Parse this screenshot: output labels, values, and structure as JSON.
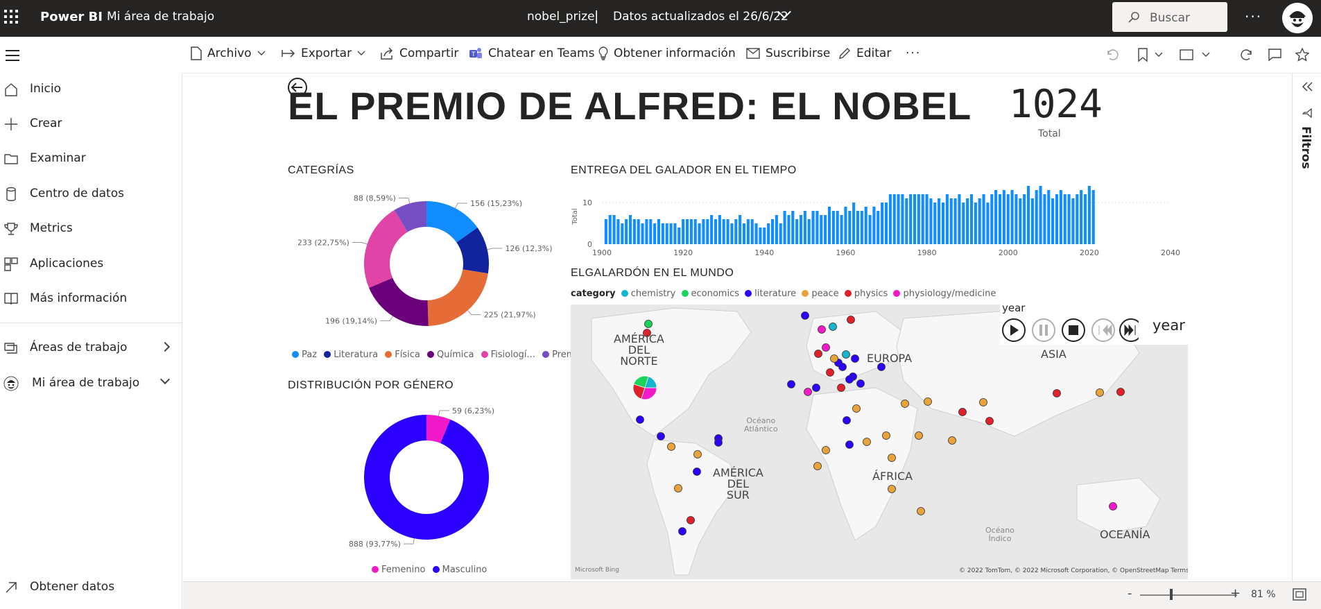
{
  "app": {
    "brand": "Power BI",
    "workspace": "Mi área de trabajo",
    "document": "nobel_prize",
    "separator": "|",
    "updated": "Datos actualizados el 26/6/22",
    "search_placeholder": "Buscar",
    "more": "···"
  },
  "toolbar": {
    "archivo": "Archivo",
    "exportar": "Exportar",
    "compartir": "Compartir",
    "teams": "Chatear en Teams",
    "insights": "Obtener información",
    "suscribirse": "Suscribirse",
    "editar": "Editar",
    "more": "···"
  },
  "sidebar": {
    "items": [
      {
        "label": "Inicio",
        "icon": "home-icon"
      },
      {
        "label": "Crear",
        "icon": "plus-icon"
      },
      {
        "label": "Examinar",
        "icon": "folder-icon"
      },
      {
        "label": "Centro de datos",
        "icon": "database-icon"
      },
      {
        "label": "Metrics",
        "icon": "trophy-icon"
      },
      {
        "label": "Aplicaciones",
        "icon": "apps-icon"
      },
      {
        "label": "Más información",
        "icon": "book-icon"
      }
    ],
    "areas": "Áreas de trabajo",
    "myarea": "Mi área de trabajo",
    "getdata": "Obtener datos"
  },
  "right_pane": {
    "filters": "Filtros"
  },
  "report": {
    "title": "EL PREMIO DE ALFRED: EL NOBEL",
    "kpi_value": "1024",
    "kpi_label": "Total"
  },
  "categories_chart": {
    "title": "CATEGRÍAS",
    "slices": [
      {
        "name": "Paz",
        "value": 156,
        "label": "156 (15,23%)",
        "color": "#118DFF"
      },
      {
        "name": "Literatura",
        "value": 126,
        "label": "126 (12,3%)",
        "color": "#12239E"
      },
      {
        "name": "Física",
        "value": 225,
        "label": "225 (21,97%)",
        "color": "#E66C37"
      },
      {
        "name": "Química",
        "value": 196,
        "label": "196 (19,14%)",
        "color": "#6B007B"
      },
      {
        "name": "Fisiologí...",
        "value": 233,
        "label": "233 (22,75%)",
        "color": "#E044A7"
      },
      {
        "name": "Premio ...",
        "value": 88,
        "label": "88 (8,59%)",
        "color": "#744EC2"
      }
    ]
  },
  "gender_chart": {
    "title": "DISTRIBUCIÓN POR GÉNERO",
    "slices": [
      {
        "name": "Femenino",
        "value": 59,
        "label": "59 (6,23%)",
        "color": "#F21AC8"
      },
      {
        "name": "Masculino",
        "value": 888,
        "label": "888 (93,77%)",
        "color": "#2B00FF"
      }
    ]
  },
  "time_chart": {
    "title": "ENTREGA DEL GALADOR EN EL TIEMPO",
    "ylabel": "Total",
    "xticks": [
      "1900",
      "1920",
      "1940",
      "1960",
      "1980",
      "2000",
      "2020",
      "2040"
    ],
    "yticks": [
      "0",
      "10"
    ]
  },
  "map_chart": {
    "title": "ELGALARDÓN EN EL MUNDO",
    "legend_title": "category",
    "legend": [
      {
        "name": "chemistry",
        "color": "#12B5CB"
      },
      {
        "name": "economics",
        "color": "#1AD35A"
      },
      {
        "name": "literature",
        "color": "#2B00FF"
      },
      {
        "name": "peace",
        "color": "#E8A33C"
      },
      {
        "name": "physics",
        "color": "#E0202A"
      },
      {
        "name": "physiology/medicine",
        "color": "#F21AC8"
      }
    ],
    "regions": {
      "na1": "AMÉRICA",
      "na2": "DEL",
      "na3": "NORTE",
      "sa1": "AMÉRICA",
      "sa2": "DEL",
      "sa3": "SUR",
      "eu": "EUROPA",
      "af": "ÁFRICA",
      "as": "ASIA",
      "oc": "OCEANÍA",
      "oa1": "Océano",
      "oa2": "Atlántico",
      "oi1": "Océano",
      "oi2": "Índico"
    },
    "attribution": "© 2022 TomTom, © 2022 Microsoft Corporation, © OpenStreetMap  Terms",
    "bing": "Microsoft Bing",
    "player_title": "year",
    "player_label": "year"
  },
  "chart_data": [
    {
      "type": "pie",
      "title": "CATEGRÍAS",
      "categories": [
        "Paz",
        "Literatura",
        "Física",
        "Química",
        "Fisiologí...",
        "Premio ..."
      ],
      "values": [
        156,
        126,
        225,
        196,
        233,
        88
      ]
    },
    {
      "type": "pie",
      "title": "DISTRIBUCIÓN POR GÉNERO",
      "categories": [
        "Femenino",
        "Masculino"
      ],
      "values": [
        59,
        888
      ]
    },
    {
      "type": "bar",
      "title": "ENTREGA DEL GALADOR EN EL TIEMPO",
      "ylabel": "Total",
      "xlim": [
        1900,
        2040
      ],
      "ylim": [
        0,
        15
      ],
      "x": [
        1901,
        1902,
        1903,
        1904,
        1905,
        1906,
        1907,
        1908,
        1909,
        1910,
        1911,
        1912,
        1913,
        1914,
        1915,
        1916,
        1917,
        1918,
        1919,
        1920,
        1921,
        1922,
        1923,
        1924,
        1925,
        1926,
        1927,
        1928,
        1929,
        1930,
        1931,
        1932,
        1933,
        1934,
        1935,
        1936,
        1937,
        1938,
        1939,
        1940,
        1941,
        1942,
        1943,
        1944,
        1945,
        1946,
        1947,
        1948,
        1949,
        1950,
        1951,
        1952,
        1953,
        1954,
        1955,
        1956,
        1957,
        1958,
        1959,
        1960,
        1961,
        1962,
        1963,
        1964,
        1965,
        1966,
        1967,
        1968,
        1969,
        1970,
        1971,
        1972,
        1973,
        1974,
        1975,
        1976,
        1977,
        1978,
        1979,
        1980,
        1981,
        1982,
        1983,
        1984,
        1985,
        1986,
        1987,
        1988,
        1989,
        1990,
        1991,
        1992,
        1993,
        1994,
        1995,
        1996,
        1997,
        1998,
        1999,
        2000,
        2001,
        2002,
        2003,
        2004,
        2005,
        2006,
        2007,
        2008,
        2009,
        2010,
        2011,
        2012,
        2013,
        2014,
        2015,
        2016,
        2017,
        2018,
        2019,
        2020,
        2021
      ],
      "values": [
        6,
        7,
        7,
        6,
        5,
        6,
        7,
        6,
        6,
        5,
        6,
        6,
        5,
        6,
        5,
        5,
        5,
        5,
        4,
        6,
        6,
        6,
        6,
        5,
        6,
        6,
        7,
        6,
        7,
        6,
        6,
        5,
        6,
        7,
        5,
        6,
        6,
        5,
        4,
        4,
        5,
        6,
        7,
        5,
        8,
        7,
        8,
        6,
        7,
        8,
        6,
        8,
        8,
        7,
        7,
        9,
        8,
        8,
        7,
        9,
        8,
        10,
        8,
        8,
        9,
        7,
        9,
        8,
        10,
        10,
        12,
        12,
        12,
        12,
        11,
        12,
        12,
        12,
        12,
        12,
        11,
        10,
        11,
        10,
        12,
        11,
        11,
        12,
        10,
        11,
        12,
        10,
        11,
        12,
        10,
        12,
        13,
        12,
        13,
        12,
        13,
        12,
        11,
        12,
        14,
        11,
        13,
        14,
        12,
        13,
        11,
        12,
        13,
        12,
        12,
        11,
        12,
        13,
        12,
        14,
        13
      ]
    }
  ]
}
